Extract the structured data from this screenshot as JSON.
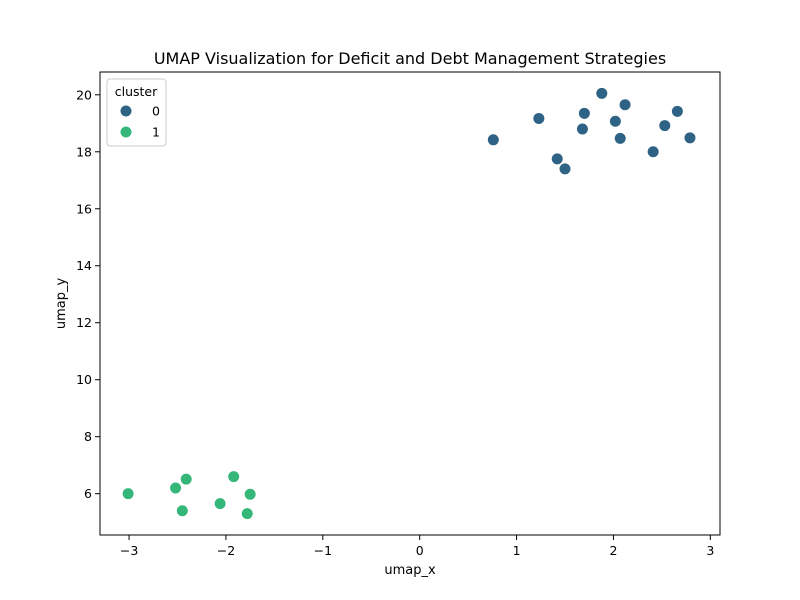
{
  "chart_data": {
    "type": "scatter",
    "title": "UMAP Visualization for Deficit and Debt Management Strategies",
    "xlabel": "umap_x",
    "ylabel": "umap_y",
    "xlim": [
      -3.3,
      3.1
    ],
    "ylim": [
      4.55,
      20.8
    ],
    "xticks": [
      -3,
      -2,
      -1,
      0,
      1,
      2,
      3
    ],
    "xtick_labels": [
      "−3",
      "−2",
      "−1",
      "0",
      "1",
      "2",
      "3"
    ],
    "yticks": [
      6,
      8,
      10,
      12,
      14,
      16,
      18,
      20
    ],
    "ytick_labels": [
      "6",
      "8",
      "10",
      "12",
      "14",
      "16",
      "18",
      "20"
    ],
    "grid": false,
    "legend": {
      "title": "cluster",
      "position": "top-left"
    },
    "series": [
      {
        "name": "0",
        "color": "#2e6386",
        "points": [
          {
            "x": 0.76,
            "y": 18.42
          },
          {
            "x": 1.23,
            "y": 19.17
          },
          {
            "x": 1.42,
            "y": 17.75
          },
          {
            "x": 1.5,
            "y": 17.4
          },
          {
            "x": 1.68,
            "y": 18.8
          },
          {
            "x": 1.7,
            "y": 19.35
          },
          {
            "x": 1.88,
            "y": 20.05
          },
          {
            "x": 2.02,
            "y": 19.07
          },
          {
            "x": 2.07,
            "y": 18.47
          },
          {
            "x": 2.12,
            "y": 19.65
          },
          {
            "x": 2.41,
            "y": 18.0
          },
          {
            "x": 2.53,
            "y": 18.92
          },
          {
            "x": 2.66,
            "y": 19.42
          },
          {
            "x": 2.79,
            "y": 18.49
          }
        ]
      },
      {
        "name": "1",
        "color": "#35b779",
        "points": [
          {
            "x": -3.01,
            "y": 6.0
          },
          {
            "x": -2.52,
            "y": 6.2
          },
          {
            "x": -2.45,
            "y": 5.4
          },
          {
            "x": -2.41,
            "y": 6.51
          },
          {
            "x": -2.06,
            "y": 5.65
          },
          {
            "x": -1.92,
            "y": 6.6
          },
          {
            "x": -1.78,
            "y": 5.3
          },
          {
            "x": -1.75,
            "y": 5.98
          }
        ]
      }
    ]
  }
}
